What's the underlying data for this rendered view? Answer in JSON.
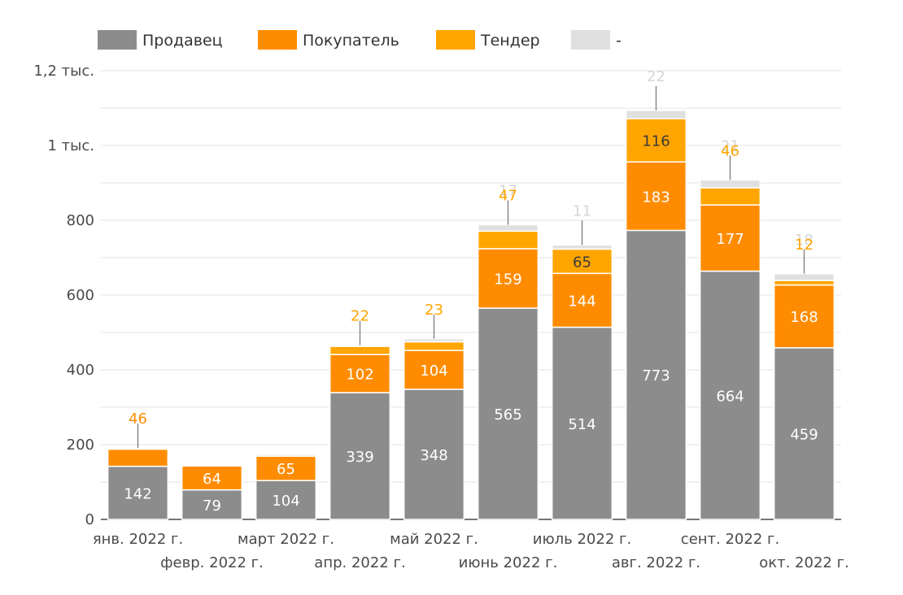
{
  "chart_data": {
    "type": "bar",
    "stacked": true,
    "categories": [
      "янв. 2022 г.",
      "февр. 2022 г.",
      "март 2022 г.",
      "апр. 2022 г.",
      "май 2022 г.",
      "июнь 2022 г.",
      "июль 2022 г.",
      "авг. 2022 г.",
      "сент. 2022 г.",
      "окт. 2022 г."
    ],
    "series": [
      {
        "name": "Продавец",
        "color": "#8c8c8c",
        "values": [
          142,
          79,
          104,
          339,
          348,
          565,
          514,
          773,
          664,
          459
        ],
        "labels": [
          "142",
          "79",
          "104",
          "339",
          "348",
          "565",
          "514",
          "773",
          "664",
          "459"
        ]
      },
      {
        "name": "Покупатель",
        "color": "#ff8c00",
        "values": [
          46,
          64,
          65,
          102,
          104,
          159,
          144,
          183,
          177,
          168
        ],
        "labels": [
          "46",
          "64",
          "65",
          "102",
          "104",
          "159",
          "144",
          "183",
          "177",
          "168"
        ]
      },
      {
        "name": "Тендер",
        "color": "#ffa500",
        "values": [
          0,
          0,
          0,
          22,
          23,
          47,
          65,
          116,
          46,
          12
        ],
        "labels": [
          "",
          "",
          "",
          "22",
          "23",
          "47",
          "65",
          "116",
          "46",
          "12"
        ]
      },
      {
        "name": "-",
        "color": "#e0e0e0",
        "values": [
          3,
          0,
          5,
          3,
          8,
          17,
          11,
          22,
          21,
          18
        ],
        "labels": [
          "",
          "",
          "",
          "",
          "",
          "17",
          "11",
          "22",
          "21",
          "18"
        ]
      }
    ],
    "y_ticks": [
      {
        "value": 0,
        "label": "0"
      },
      {
        "value": 200,
        "label": "200"
      },
      {
        "value": 400,
        "label": "400"
      },
      {
        "value": 600,
        "label": "600"
      },
      {
        "value": 800,
        "label": "800"
      },
      {
        "value": 1000,
        "label": "1 тыс."
      },
      {
        "value": 1200,
        "label": "1,2 тыс."
      }
    ],
    "ylim": [
      0,
      1200
    ],
    "minor_step": 100,
    "grid": true,
    "legend_position": "top-left",
    "title": "",
    "xlabel": "",
    "ylabel": ""
  }
}
